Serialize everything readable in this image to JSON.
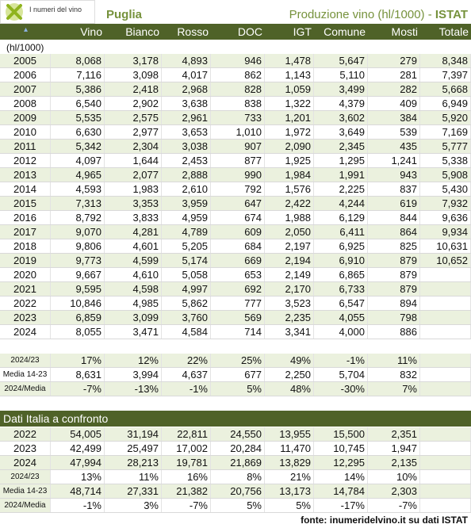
{
  "header": {
    "logo": "I numeri del vino",
    "region": "Puglia",
    "title": "Produzione vino (hl/1000) -",
    "source": "ISTAT"
  },
  "columns": [
    "Vino",
    "Bianco",
    "Rosso",
    "DOC",
    "IGT",
    "Comune",
    "Mosti",
    "Totale"
  ],
  "unit": "(hl/1000)",
  "rows": [
    {
      "label": "2005",
      "cells": [
        "8,068",
        "3,178",
        "4,893",
        "946",
        "1,478",
        "5,647",
        "279",
        "8,348"
      ]
    },
    {
      "label": "2006",
      "cells": [
        "7,116",
        "3,098",
        "4,017",
        "862",
        "1,143",
        "5,110",
        "281",
        "7,397"
      ]
    },
    {
      "label": "2007",
      "cells": [
        "5,386",
        "2,418",
        "2,968",
        "828",
        "1,059",
        "3,499",
        "282",
        "5,668"
      ]
    },
    {
      "label": "2008",
      "cells": [
        "6,540",
        "2,902",
        "3,638",
        "838",
        "1,322",
        "4,379",
        "409",
        "6,949"
      ]
    },
    {
      "label": "2009",
      "cells": [
        "5,535",
        "2,575",
        "2,961",
        "733",
        "1,201",
        "3,602",
        "384",
        "5,920"
      ]
    },
    {
      "label": "2010",
      "cells": [
        "6,630",
        "2,977",
        "3,653",
        "1,010",
        "1,972",
        "3,649",
        "539",
        "7,169"
      ]
    },
    {
      "label": "2011",
      "cells": [
        "5,342",
        "2,304",
        "3,038",
        "907",
        "2,090",
        "2,345",
        "435",
        "5,777"
      ]
    },
    {
      "label": "2012",
      "cells": [
        "4,097",
        "1,644",
        "2,453",
        "877",
        "1,925",
        "1,295",
        "1,241",
        "5,338"
      ]
    },
    {
      "label": "2013",
      "cells": [
        "4,965",
        "2,077",
        "2,888",
        "990",
        "1,984",
        "1,991",
        "943",
        "5,908"
      ]
    },
    {
      "label": "2014",
      "cells": [
        "4,593",
        "1,983",
        "2,610",
        "792",
        "1,576",
        "2,225",
        "837",
        "5,430"
      ]
    },
    {
      "label": "2015",
      "cells": [
        "7,313",
        "3,353",
        "3,959",
        "647",
        "2,422",
        "4,244",
        "619",
        "7,932"
      ]
    },
    {
      "label": "2016",
      "cells": [
        "8,792",
        "3,833",
        "4,959",
        "674",
        "1,988",
        "6,129",
        "844",
        "9,636"
      ]
    },
    {
      "label": "2017",
      "cells": [
        "9,070",
        "4,281",
        "4,789",
        "609",
        "2,050",
        "6,411",
        "864",
        "9,934"
      ]
    },
    {
      "label": "2018",
      "cells": [
        "9,806",
        "4,601",
        "5,205",
        "684",
        "2,197",
        "6,925",
        "825",
        "10,631"
      ]
    },
    {
      "label": "2019",
      "cells": [
        "9,773",
        "4,599",
        "5,174",
        "669",
        "2,194",
        "6,910",
        "879",
        "10,652"
      ]
    },
    {
      "label": "2020",
      "cells": [
        "9,667",
        "4,610",
        "5,058",
        "653",
        "2,149",
        "6,865",
        "879",
        null
      ]
    },
    {
      "label": "2021",
      "cells": [
        "9,595",
        "4,598",
        "4,997",
        "692",
        "2,170",
        "6,733",
        "879",
        null
      ]
    },
    {
      "label": "2022",
      "cells": [
        "10,846",
        "4,985",
        "5,862",
        "777",
        "3,523",
        "6,547",
        "894",
        null
      ]
    },
    {
      "label": "2023",
      "cells": [
        "6,859",
        "3,099",
        "3,760",
        "569",
        "2,235",
        "4,055",
        "798",
        null
      ]
    },
    {
      "label": "2024",
      "cells": [
        "8,055",
        "3,471",
        "4,584",
        "714",
        "3,341",
        "4,000",
        "886",
        null
      ]
    }
  ],
  "summary": [
    {
      "label": "2024/23",
      "cells": [
        "17%",
        "12%",
        "22%",
        "25%",
        "49%",
        "-1%",
        "11%",
        null
      ]
    },
    {
      "label": "Media 14-23",
      "cells": [
        "8,631",
        "3,994",
        "4,637",
        "677",
        "2,250",
        "5,704",
        "832",
        null
      ]
    },
    {
      "label": "2024/Media",
      "cells": [
        "-7%",
        "-13%",
        "-1%",
        "5%",
        "48%",
        "-30%",
        "7%",
        null
      ]
    }
  ],
  "italia": {
    "title": "Dati Italia a confronto",
    "rows": [
      {
        "label": "2022",
        "cells": [
          "54,005",
          "31,194",
          "22,811",
          "24,550",
          "13,955",
          "15,500",
          "2,351",
          null
        ]
      },
      {
        "label": "2023",
        "cells": [
          "42,499",
          "25,497",
          "17,002",
          "20,284",
          "11,470",
          "10,745",
          "1,947",
          null
        ]
      },
      {
        "label": "2024",
        "cells": [
          "47,994",
          "28,213",
          "19,781",
          "21,869",
          "13,829",
          "12,295",
          "2,135",
          null
        ]
      },
      {
        "label": "2024/23",
        "cells": [
          "13%",
          "11%",
          "16%",
          "8%",
          "21%",
          "14%",
          "10%",
          null
        ]
      },
      {
        "label": "Media 14-23",
        "cells": [
          "48,714",
          "27,331",
          "21,382",
          "20,756",
          "13,173",
          "14,784",
          "2,303",
          null
        ]
      },
      {
        "label": "2024/Media",
        "cells": [
          "-1%",
          "3%",
          "-7%",
          "5%",
          "5%",
          "-17%",
          "-7%",
          null
        ]
      }
    ]
  },
  "footer": "fonte: inumeridelvino.it su dati ISTAT"
}
